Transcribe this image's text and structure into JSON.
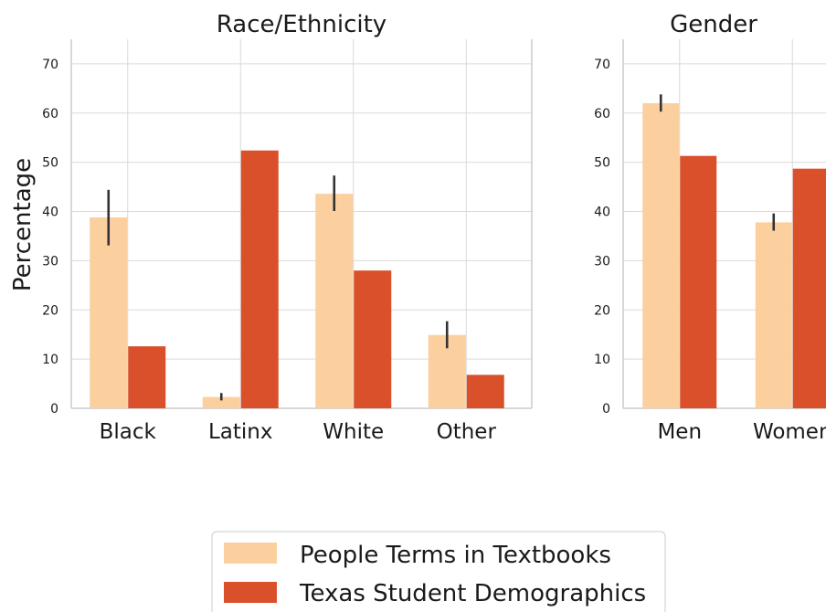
{
  "colors": {
    "textbooks": "#fccf9f",
    "texas": "#d9502a",
    "grid": "#d9d9d9",
    "axis": "#cccccc",
    "error": "#333333"
  },
  "ylabel": "Percentage",
  "legend": {
    "placement": "bottom-center",
    "items": [
      {
        "label": "People Terms in Textbooks",
        "color": "#fccf9f"
      },
      {
        "label": "Texas Student Demographics",
        "color": "#d9502a"
      }
    ]
  },
  "chart_data": [
    {
      "type": "bar",
      "title": "Race/Ethnicity",
      "ylabel": "Percentage",
      "ylim": [
        0,
        75
      ],
      "yticks": [
        0,
        10,
        20,
        30,
        40,
        50,
        60,
        70
      ],
      "grid": true,
      "categories": [
        "Black",
        "Latinx",
        "White",
        "Other"
      ],
      "series": [
        {
          "name": "People Terms in Textbooks",
          "values": [
            38.8,
            2.3,
            43.6,
            14.9
          ],
          "error_low": [
            33.1,
            1.6,
            40.1,
            12.2
          ],
          "error_high": [
            44.4,
            3.1,
            47.3,
            17.7
          ]
        },
        {
          "name": "Texas Student Demographics",
          "values": [
            12.6,
            52.4,
            28.0,
            6.8
          ]
        }
      ]
    },
    {
      "type": "bar",
      "title": "Gender",
      "ylim": [
        0,
        75
      ],
      "yticks": [
        0,
        10,
        20,
        30,
        40,
        50,
        60,
        70
      ],
      "grid": true,
      "categories": [
        "Men",
        "Women"
      ],
      "series": [
        {
          "name": "People Terms in Textbooks",
          "values": [
            62.0,
            37.8
          ],
          "error_low": [
            60.3,
            36.1
          ],
          "error_high": [
            63.8,
            39.6
          ]
        },
        {
          "name": "Texas Student Demographics",
          "values": [
            51.3,
            48.7
          ]
        }
      ]
    }
  ]
}
